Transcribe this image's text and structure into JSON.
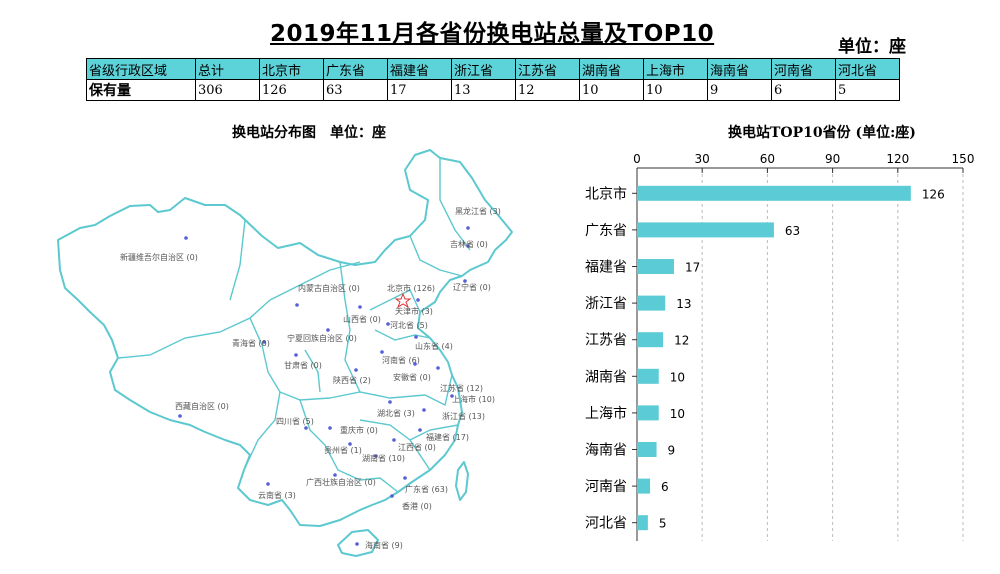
{
  "title": "2019年11月各省份换电站总量及TOP10",
  "unit": "单位：座",
  "table": {
    "headers": [
      "省级行政区域",
      "总计",
      "北京市",
      "广东省",
      "福建省",
      "浙江省",
      "江苏省",
      "湖南省",
      "上海市",
      "海南省",
      "河南省",
      "河北省"
    ],
    "row": [
      "保有量",
      "306",
      "126",
      "63",
      "17",
      "13",
      "12",
      "10",
      "10",
      "9",
      "6",
      "5"
    ]
  },
  "map_title": "换电站分布图　单位：座",
  "map_labels": [
    {
      "name": "黑龙江省 (3)"
    },
    {
      "name": "吉林省 (0)"
    },
    {
      "name": "辽宁省 (0)"
    },
    {
      "name": "内蒙古自治区 (0)"
    },
    {
      "name": "北京市 (126)"
    },
    {
      "name": "天津市 (3)"
    },
    {
      "name": "新疆维吾尔自治区 (0)"
    },
    {
      "name": "山西省 (0)"
    },
    {
      "name": "河北省 (5)"
    },
    {
      "name": "宁夏回族自治区 (0)"
    },
    {
      "name": "山东省 (4)"
    },
    {
      "name": "青海省 (0)"
    },
    {
      "name": "甘肃省 (0)"
    },
    {
      "name": "河南省 (6)"
    },
    {
      "name": "陕西省 (2)"
    },
    {
      "name": "安徽省 (0)"
    },
    {
      "name": "江苏省 (12)"
    },
    {
      "name": "上海市 (10)"
    },
    {
      "name": "西藏自治区 (0)"
    },
    {
      "name": "湖北省 (3)"
    },
    {
      "name": "浙江省 (13)"
    },
    {
      "name": "四川省 (5)"
    },
    {
      "name": "重庆市 (0)"
    },
    {
      "name": "福建省 (17)"
    },
    {
      "name": "贵州省 (1)"
    },
    {
      "name": "江西省 (0)"
    },
    {
      "name": "湖南省 (10)"
    },
    {
      "name": "广西壮族自治区 (0)"
    },
    {
      "name": "广东省 (63)"
    },
    {
      "name": "云南省 (3)"
    },
    {
      "name": "香港 (0)"
    },
    {
      "name": "海南省 (9)"
    }
  ],
  "chart_data": {
    "type": "bar",
    "orientation": "horizontal",
    "title": "换电站TOP10省份 (单位:座)",
    "categories": [
      "北京市",
      "广东省",
      "福建省",
      "浙江省",
      "江苏省",
      "湖南省",
      "上海市",
      "海南省",
      "河南省",
      "河北省"
    ],
    "values": [
      126,
      63,
      17,
      13,
      12,
      10,
      10,
      9,
      6,
      5
    ],
    "xlim": [
      0,
      150
    ],
    "xticks": [
      0,
      30,
      60,
      90,
      120,
      150
    ],
    "grid": true,
    "bar_color": "#5bcbd6"
  }
}
